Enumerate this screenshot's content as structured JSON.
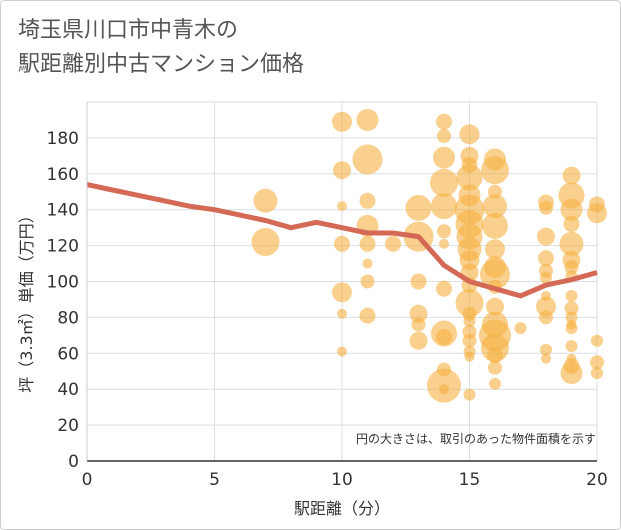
{
  "title_lines": [
    "埼玉県川口市中青木の",
    "駅距離別中古マンション価格"
  ],
  "chart_data": {
    "type": "scatter",
    "xlabel": "駅距離（分）",
    "ylabel": "坪（3.3㎡）単価（万円）",
    "note": "円の大きさは、取引のあった物件面積を示す",
    "xlim": [
      0,
      20
    ],
    "ylim": [
      0,
      200
    ],
    "xticks": [
      0,
      5,
      10,
      15,
      20
    ],
    "yticks": [
      0,
      20,
      40,
      60,
      80,
      100,
      120,
      140,
      160,
      180
    ],
    "grid": true,
    "colors": {
      "bubble": "#f5b041",
      "line": "#d46a55",
      "grid": "#d9dfe6"
    },
    "bubbles": [
      {
        "x": 7,
        "y": 145,
        "s": 12
      },
      {
        "x": 7,
        "y": 122,
        "s": 14
      },
      {
        "x": 10,
        "y": 189,
        "s": 10
      },
      {
        "x": 10,
        "y": 162,
        "s": 9
      },
      {
        "x": 10,
        "y": 142,
        "s": 5
      },
      {
        "x": 10,
        "y": 121,
        "s": 8
      },
      {
        "x": 10,
        "y": 94,
        "s": 10
      },
      {
        "x": 10,
        "y": 82,
        "s": 5
      },
      {
        "x": 10,
        "y": 61,
        "s": 5
      },
      {
        "x": 11,
        "y": 190,
        "s": 11
      },
      {
        "x": 11,
        "y": 168,
        "s": 15
      },
      {
        "x": 11,
        "y": 145,
        "s": 8
      },
      {
        "x": 11,
        "y": 131,
        "s": 11
      },
      {
        "x": 11,
        "y": 121,
        "s": 8
      },
      {
        "x": 11,
        "y": 110,
        "s": 5
      },
      {
        "x": 11,
        "y": 100,
        "s": 7
      },
      {
        "x": 11,
        "y": 81,
        "s": 8
      },
      {
        "x": 12,
        "y": 121,
        "s": 8
      },
      {
        "x": 13,
        "y": 141,
        "s": 13
      },
      {
        "x": 13,
        "y": 125,
        "s": 15
      },
      {
        "x": 13,
        "y": 100,
        "s": 8
      },
      {
        "x": 13,
        "y": 82,
        "s": 9
      },
      {
        "x": 13,
        "y": 76,
        "s": 7
      },
      {
        "x": 13,
        "y": 67,
        "s": 9
      },
      {
        "x": 14,
        "y": 189,
        "s": 8
      },
      {
        "x": 14,
        "y": 181,
        "s": 7
      },
      {
        "x": 14,
        "y": 169,
        "s": 11
      },
      {
        "x": 14,
        "y": 155,
        "s": 14
      },
      {
        "x": 14,
        "y": 142,
        "s": 13
      },
      {
        "x": 14,
        "y": 128,
        "s": 7
      },
      {
        "x": 14,
        "y": 121,
        "s": 5
      },
      {
        "x": 14,
        "y": 96,
        "s": 8
      },
      {
        "x": 14,
        "y": 71,
        "s": 13
      },
      {
        "x": 14,
        "y": 69,
        "s": 8
      },
      {
        "x": 14,
        "y": 51,
        "s": 7
      },
      {
        "x": 14,
        "y": 42,
        "s": 17
      },
      {
        "x": 14,
        "y": 40,
        "s": 5
      },
      {
        "x": 15,
        "y": 182,
        "s": 10
      },
      {
        "x": 15,
        "y": 170,
        "s": 9
      },
      {
        "x": 15,
        "y": 165,
        "s": 8
      },
      {
        "x": 15,
        "y": 158,
        "s": 13
      },
      {
        "x": 15,
        "y": 148,
        "s": 11
      },
      {
        "x": 15,
        "y": 140,
        "s": 15
      },
      {
        "x": 15,
        "y": 132,
        "s": 14
      },
      {
        "x": 15,
        "y": 125,
        "s": 13
      },
      {
        "x": 15,
        "y": 118,
        "s": 12
      },
      {
        "x": 15,
        "y": 112,
        "s": 10
      },
      {
        "x": 15,
        "y": 105,
        "s": 9
      },
      {
        "x": 15,
        "y": 98,
        "s": 8
      },
      {
        "x": 15,
        "y": 88,
        "s": 14
      },
      {
        "x": 15,
        "y": 82,
        "s": 7
      },
      {
        "x": 15,
        "y": 78,
        "s": 6
      },
      {
        "x": 15,
        "y": 72,
        "s": 7
      },
      {
        "x": 15,
        "y": 67,
        "s": 7
      },
      {
        "x": 15,
        "y": 61,
        "s": 6
      },
      {
        "x": 15,
        "y": 58,
        "s": 5
      },
      {
        "x": 15,
        "y": 37,
        "s": 6
      },
      {
        "x": 16,
        "y": 168,
        "s": 11
      },
      {
        "x": 16,
        "y": 162,
        "s": 14
      },
      {
        "x": 16,
        "y": 150,
        "s": 7
      },
      {
        "x": 16,
        "y": 142,
        "s": 12
      },
      {
        "x": 16,
        "y": 131,
        "s": 13
      },
      {
        "x": 16,
        "y": 118,
        "s": 10
      },
      {
        "x": 16,
        "y": 108,
        "s": 11
      },
      {
        "x": 16,
        "y": 104,
        "s": 15
      },
      {
        "x": 16,
        "y": 97,
        "s": 7
      },
      {
        "x": 16,
        "y": 86,
        "s": 9
      },
      {
        "x": 16,
        "y": 76,
        "s": 13
      },
      {
        "x": 16,
        "y": 70,
        "s": 16
      },
      {
        "x": 16,
        "y": 63,
        "s": 14
      },
      {
        "x": 16,
        "y": 59,
        "s": 8
      },
      {
        "x": 16,
        "y": 52,
        "s": 7
      },
      {
        "x": 16,
        "y": 43,
        "s": 6
      },
      {
        "x": 17,
        "y": 74,
        "s": 6
      },
      {
        "x": 18,
        "y": 144,
        "s": 8
      },
      {
        "x": 18,
        "y": 141,
        "s": 7
      },
      {
        "x": 18,
        "y": 125,
        "s": 9
      },
      {
        "x": 18,
        "y": 113,
        "s": 8
      },
      {
        "x": 18,
        "y": 106,
        "s": 7
      },
      {
        "x": 18,
        "y": 102,
        "s": 6
      },
      {
        "x": 18,
        "y": 92,
        "s": 5
      },
      {
        "x": 18,
        "y": 86,
        "s": 10
      },
      {
        "x": 18,
        "y": 80,
        "s": 7
      },
      {
        "x": 18,
        "y": 62,
        "s": 6
      },
      {
        "x": 18,
        "y": 57,
        "s": 5
      },
      {
        "x": 19,
        "y": 159,
        "s": 9
      },
      {
        "x": 19,
        "y": 148,
        "s": 13
      },
      {
        "x": 19,
        "y": 140,
        "s": 11
      },
      {
        "x": 19,
        "y": 132,
        "s": 8
      },
      {
        "x": 19,
        "y": 121,
        "s": 12
      },
      {
        "x": 19,
        "y": 112,
        "s": 9
      },
      {
        "x": 19,
        "y": 108,
        "s": 7
      },
      {
        "x": 19,
        "y": 103,
        "s": 6
      },
      {
        "x": 19,
        "y": 92,
        "s": 6
      },
      {
        "x": 19,
        "y": 85,
        "s": 7
      },
      {
        "x": 19,
        "y": 80,
        "s": 6
      },
      {
        "x": 19,
        "y": 76,
        "s": 5
      },
      {
        "x": 19,
        "y": 74,
        "s": 6
      },
      {
        "x": 19,
        "y": 64,
        "s": 6
      },
      {
        "x": 19,
        "y": 57,
        "s": 5
      },
      {
        "x": 19,
        "y": 53,
        "s": 8
      },
      {
        "x": 19,
        "y": 49,
        "s": 11
      },
      {
        "x": 20,
        "y": 143,
        "s": 8
      },
      {
        "x": 20,
        "y": 138,
        "s": 10
      },
      {
        "x": 20,
        "y": 67,
        "s": 6
      },
      {
        "x": 20,
        "y": 55,
        "s": 7
      },
      {
        "x": 20,
        "y": 49,
        "s": 6
      }
    ],
    "line": [
      {
        "x": 0,
        "y": 154
      },
      {
        "x": 1,
        "y": 151
      },
      {
        "x": 2,
        "y": 148
      },
      {
        "x": 3,
        "y": 145
      },
      {
        "x": 4,
        "y": 142
      },
      {
        "x": 5,
        "y": 140
      },
      {
        "x": 6,
        "y": 137
      },
      {
        "x": 7,
        "y": 134
      },
      {
        "x": 8,
        "y": 130
      },
      {
        "x": 9,
        "y": 133
      },
      {
        "x": 10,
        "y": 130
      },
      {
        "x": 11,
        "y": 127
      },
      {
        "x": 12,
        "y": 127
      },
      {
        "x": 13,
        "y": 125
      },
      {
        "x": 14,
        "y": 109
      },
      {
        "x": 15,
        "y": 100
      },
      {
        "x": 16,
        "y": 96
      },
      {
        "x": 17,
        "y": 92
      },
      {
        "x": 18,
        "y": 98
      },
      {
        "x": 19,
        "y": 101
      },
      {
        "x": 20,
        "y": 105
      }
    ]
  }
}
